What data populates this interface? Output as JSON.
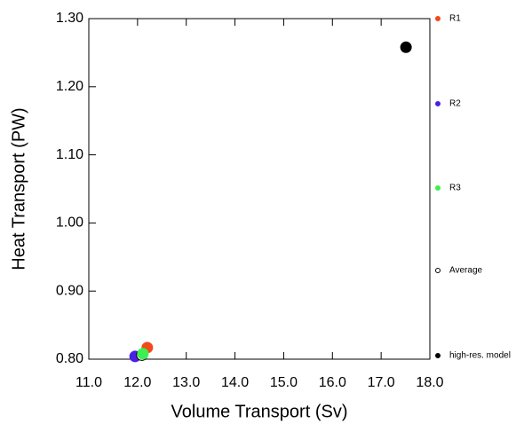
{
  "chart_data": {
    "type": "scatter",
    "xlabel": "Volume Transport (Sv)",
    "ylabel": "Heat Transport (PW)",
    "xlim": [
      11,
      18
    ],
    "ylim": [
      0.8,
      1.3
    ],
    "xticks": [
      {
        "value": 11,
        "label": "11.0"
      },
      {
        "value": 12,
        "label": "12.0"
      },
      {
        "value": 13,
        "label": "13.0"
      },
      {
        "value": 14,
        "label": "14.0"
      },
      {
        "value": 15,
        "label": "15.0"
      },
      {
        "value": 16,
        "label": "16.0"
      },
      {
        "value": 17,
        "label": "17.0"
      },
      {
        "value": 18,
        "label": "18.0"
      }
    ],
    "yticks": [
      {
        "value": 0.8,
        "label": "0.80"
      },
      {
        "value": 0.9,
        "label": "0.90"
      },
      {
        "value": 1.0,
        "label": "1.00"
      },
      {
        "value": 1.1,
        "label": "1.10"
      },
      {
        "value": 1.2,
        "label": "1.20"
      },
      {
        "value": 1.3,
        "label": "1.30"
      }
    ],
    "legend": "right",
    "series": [
      {
        "name": "R1",
        "color": "#f04a1a",
        "x": [
          12.2
        ],
        "values": [
          0.817
        ]
      },
      {
        "name": "R2",
        "color": "#4b20e6",
        "x": [
          11.95
        ],
        "values": [
          0.804
        ]
      },
      {
        "name": "Average",
        "color": "#ffffff",
        "x": [
          12.09
        ],
        "values": [
          0.806
        ]
      },
      {
        "name": "R3",
        "color": "#3cf050",
        "x": [
          12.11
        ],
        "values": [
          0.808
        ]
      },
      {
        "name": "high-res. model",
        "color": "#000000",
        "x": [
          17.51
        ],
        "values": [
          1.258
        ]
      }
    ]
  }
}
